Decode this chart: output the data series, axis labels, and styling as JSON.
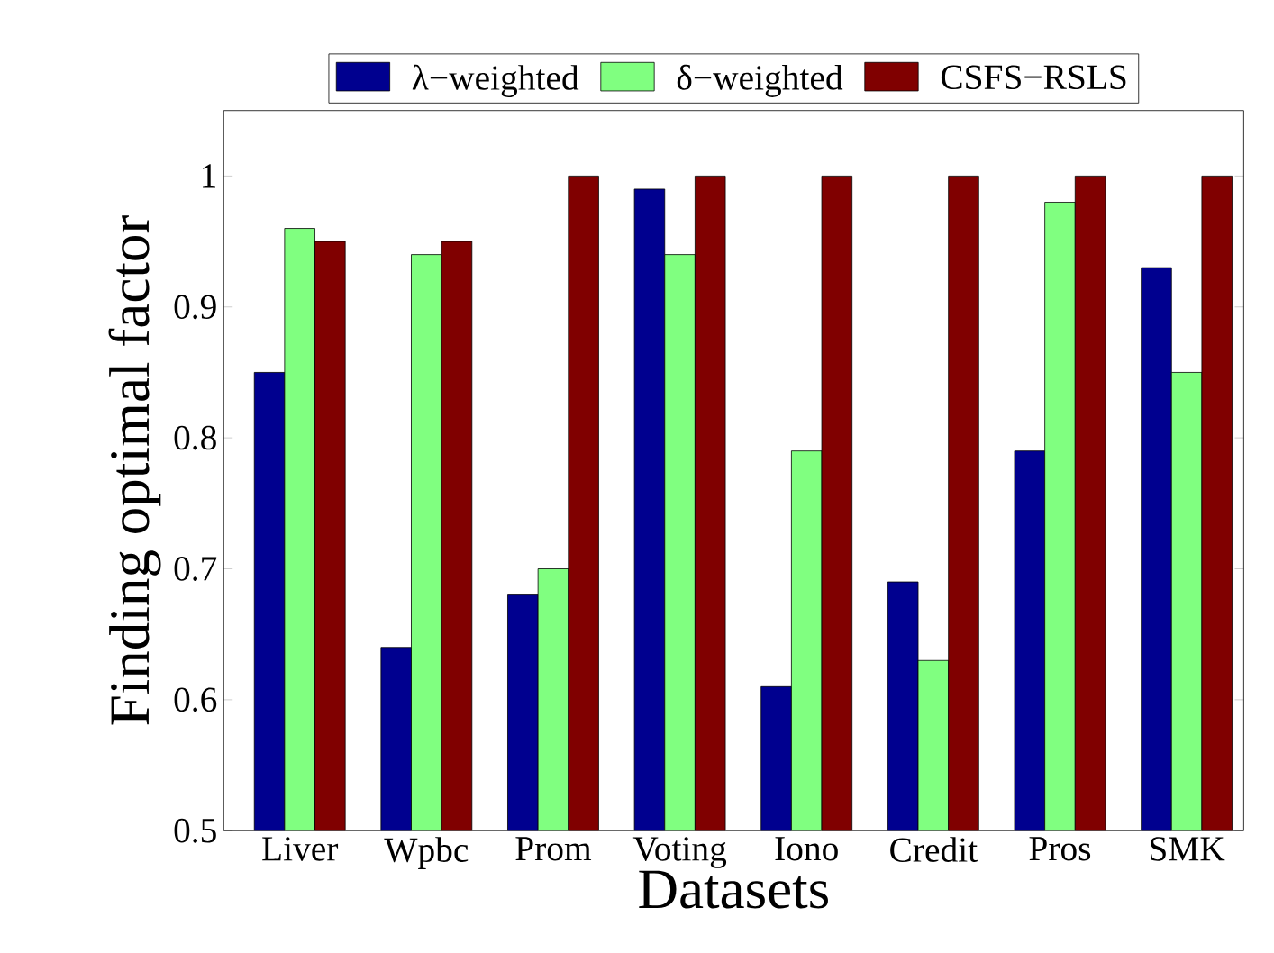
{
  "chart_data": {
    "type": "bar",
    "xlabel": "Datasets",
    "ylabel": "Finding optimal factor",
    "categories": [
      "Liver",
      "Wpbc",
      "Prom",
      "Voting",
      "Iono",
      "Credit",
      "Pros",
      "SMK"
    ],
    "series": [
      {
        "name": "λ−weighted",
        "color": "#00008f",
        "values": [
          0.85,
          0.64,
          0.68,
          0.99,
          0.61,
          0.69,
          0.79,
          0.93
        ]
      },
      {
        "name": "δ−weighted",
        "color": "#80ff80",
        "values": [
          0.96,
          0.94,
          0.7,
          0.94,
          0.79,
          0.63,
          0.98,
          0.85
        ]
      },
      {
        "name": "CSFS−RSLS",
        "color": "#800000",
        "values": [
          0.95,
          0.95,
          1.0,
          1.0,
          1.0,
          1.0,
          1.0,
          1.0
        ]
      }
    ],
    "ylim": [
      0.5,
      1.05
    ],
    "yticks": [
      0.5,
      0.6,
      0.7,
      0.8,
      0.9,
      1
    ],
    "grid": false,
    "legend": "top"
  }
}
